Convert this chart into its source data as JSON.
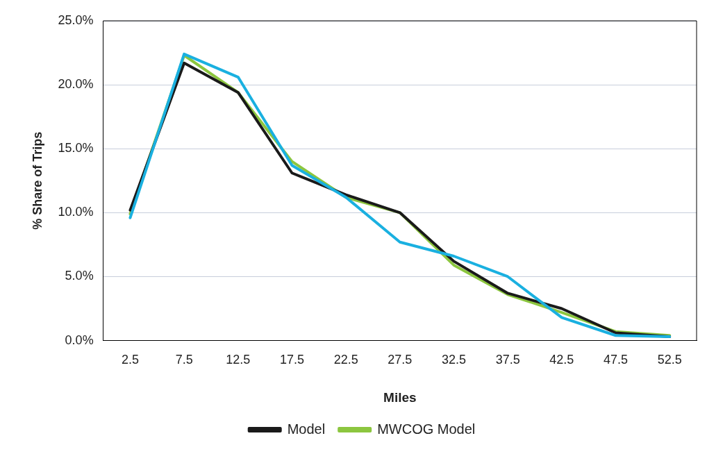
{
  "chart_data": {
    "type": "line",
    "xlabel": "Miles",
    "ylabel": "% Share of Trips",
    "categories": [
      "2.5",
      "7.5",
      "12.5",
      "17.5",
      "22.5",
      "27.5",
      "32.5",
      "37.5",
      "42.5",
      "47.5",
      "52.5"
    ],
    "series": [
      {
        "color": "#1ab0e0",
        "values": [
          9.6,
          22.4,
          20.6,
          13.7,
          11.2,
          7.7,
          6.6,
          5.0,
          1.8,
          0.4,
          0.3
        ]
      },
      {
        "name": "Model",
        "color": "#1a1a1a",
        "values": [
          10.2,
          21.7,
          19.4,
          13.1,
          11.4,
          10.0,
          6.2,
          3.7,
          2.5,
          0.6,
          0.3
        ]
      },
      {
        "name": "MWCOG Model",
        "color": "#8cc63f",
        "values": [
          9.9,
          22.3,
          19.4,
          14.0,
          11.2,
          10.0,
          5.9,
          3.6,
          2.2,
          0.7,
          0.4
        ]
      }
    ],
    "ylim": [
      0,
      25
    ],
    "yticks": [
      {
        "value": 0,
        "label": "0.0%"
      },
      {
        "value": 5,
        "label": "5.0%"
      },
      {
        "value": 10,
        "label": "10.0%"
      },
      {
        "value": 15,
        "label": "15.0%"
      },
      {
        "value": 20,
        "label": "20.0%"
      },
      {
        "value": 25,
        "label": "25.0%"
      }
    ],
    "grid": "y",
    "legend": "bottom",
    "marker": "none",
    "line_style": "solid"
  }
}
